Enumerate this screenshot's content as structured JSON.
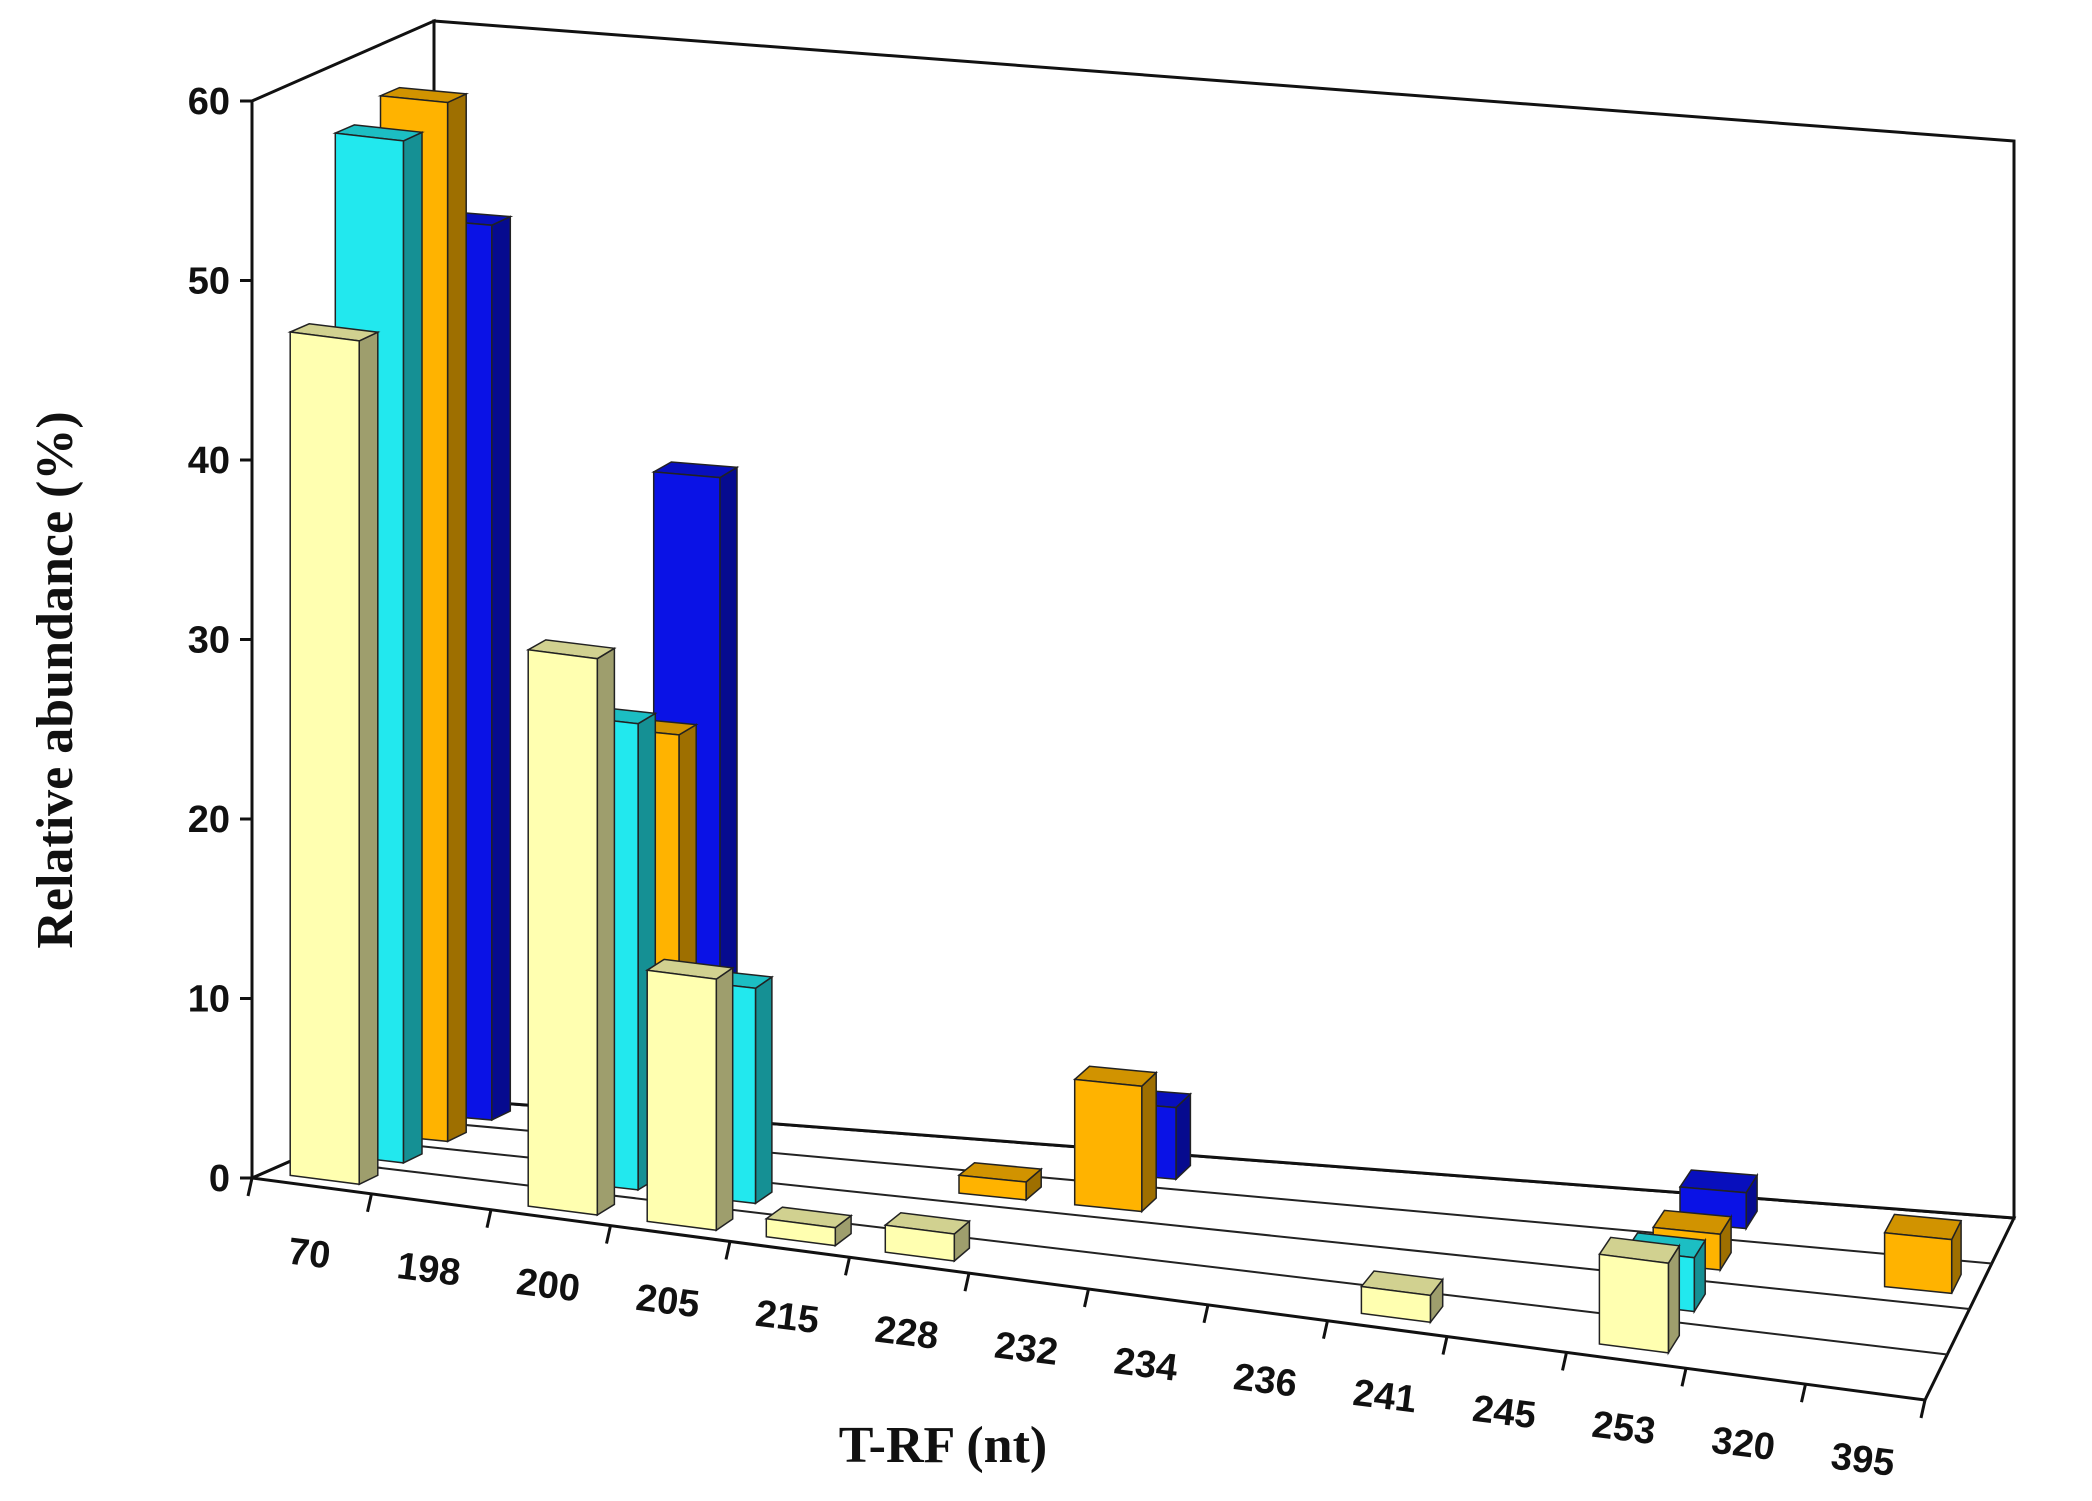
{
  "chart_data": {
    "type": "bar",
    "title": "",
    "xlabel": "T-RF (nt)",
    "ylabel": "Relative abundance (%)",
    "ylim": [
      0,
      60
    ],
    "y_ticks": [
      "0",
      "10",
      "20",
      "30",
      "40",
      "50",
      "60"
    ],
    "categories": [
      "70",
      "198",
      "200",
      "205",
      "215",
      "228",
      "232",
      "234",
      "236",
      "241",
      "245",
      "253",
      "320",
      "395"
    ],
    "grid": false,
    "legend": "none",
    "series": [
      {
        "color": "#FFFFB0",
        "values": [
          47,
          0,
          31,
          14,
          1,
          1.5,
          0,
          0,
          0,
          1.5,
          0,
          5,
          0,
          0
        ]
      },
      {
        "color": "#22E8EE",
        "values": [
          57,
          0,
          26,
          12,
          0,
          0,
          0,
          0,
          0,
          0,
          0,
          3,
          0,
          0
        ]
      },
      {
        "color": "#FFB300",
        "values": [
          58,
          0,
          24,
          0,
          0,
          1,
          7,
          0,
          0,
          0,
          0,
          2,
          0,
          3
        ]
      },
      {
        "color": "#0A12E6",
        "values": [
          50,
          0,
          37,
          0,
          0,
          0,
          4,
          0,
          0,
          0,
          0,
          2,
          0,
          0
        ]
      }
    ]
  }
}
